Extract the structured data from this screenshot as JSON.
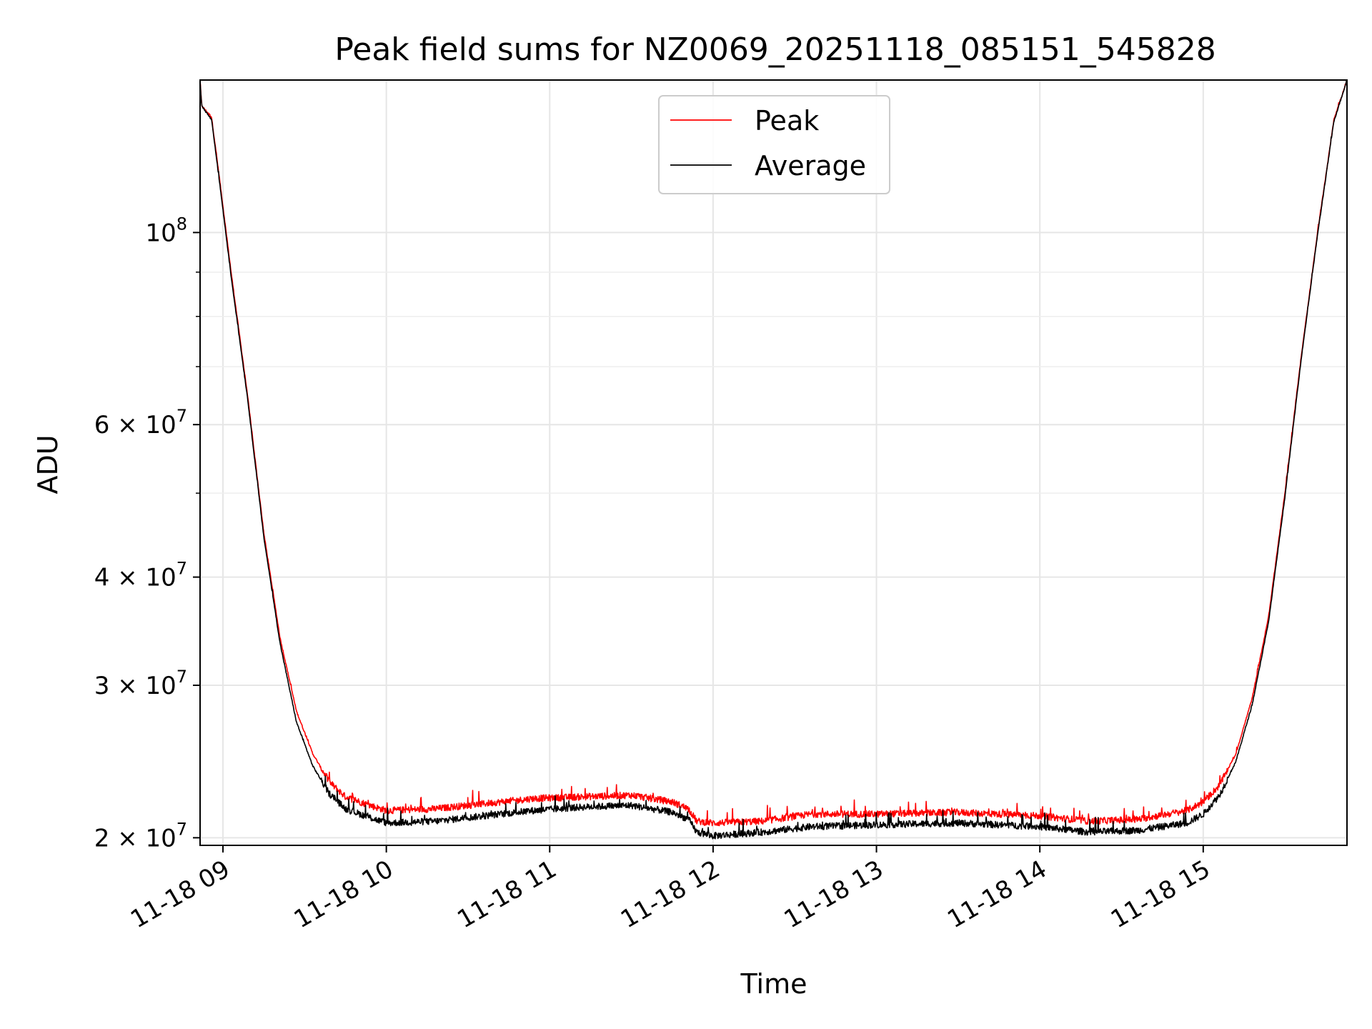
{
  "chart_data": {
    "type": "line",
    "title": "Peak field sums for NZ0069_20251118_085151_545828",
    "xlabel": "Time",
    "ylabel": "ADU",
    "yscale": "log",
    "ylim": [
      19600000,
      150000000
    ],
    "xlim": [
      8.86,
      15.88
    ],
    "grid": true,
    "legend_position": "top-center",
    "x_ticks": [
      {
        "value": 9,
        "label": "11-18 09"
      },
      {
        "value": 10,
        "label": "11-18 10"
      },
      {
        "value": 11,
        "label": "11-18 11"
      },
      {
        "value": 12,
        "label": "11-18 12"
      },
      {
        "value": 13,
        "label": "11-18 13"
      },
      {
        "value": 14,
        "label": "11-18 14"
      },
      {
        "value": 15,
        "label": "11-18 15"
      }
    ],
    "y_ticks": [
      {
        "value": 20000000,
        "base": "2 × 10",
        "exp": "7"
      },
      {
        "value": 30000000,
        "base": "3 × 10",
        "exp": "7"
      },
      {
        "value": 40000000,
        "base": "4 × 10",
        "exp": "7"
      },
      {
        "value": 60000000,
        "base": "6 × 10",
        "exp": "7"
      },
      {
        "value": 100000000,
        "base": "10",
        "exp": "8"
      }
    ],
    "y_minor_ticks": [
      50000000,
      70000000,
      80000000,
      90000000
    ],
    "x_unit_note": "x values are hours of day on 2025-11-18",
    "series": [
      {
        "name": "Peak",
        "color": "#ff0000",
        "noise": 0.018,
        "points": [
          [
            8.86,
            150000000
          ],
          [
            8.87,
            140000000
          ],
          [
            8.93,
            136000000
          ],
          [
            8.98,
            115000000
          ],
          [
            9.05,
            90000000
          ],
          [
            9.15,
            65000000
          ],
          [
            9.25,
            45000000
          ],
          [
            9.35,
            34000000
          ],
          [
            9.45,
            28000000
          ],
          [
            9.55,
            25000000
          ],
          [
            9.65,
            23200000
          ],
          [
            9.75,
            22300000
          ],
          [
            9.9,
            21800000
          ],
          [
            10.0,
            21500000
          ],
          [
            10.3,
            21600000
          ],
          [
            10.6,
            21900000
          ],
          [
            10.9,
            22200000
          ],
          [
            11.2,
            22300000
          ],
          [
            11.5,
            22400000
          ],
          [
            11.75,
            22000000
          ],
          [
            11.85,
            21600000
          ],
          [
            11.9,
            20900000
          ],
          [
            12.0,
            20800000
          ],
          [
            12.3,
            20900000
          ],
          [
            12.6,
            21300000
          ],
          [
            13.0,
            21300000
          ],
          [
            13.5,
            21400000
          ],
          [
            14.0,
            21200000
          ],
          [
            14.3,
            20900000
          ],
          [
            14.6,
            21000000
          ],
          [
            14.9,
            21500000
          ],
          [
            15.0,
            22000000
          ],
          [
            15.1,
            23000000
          ],
          [
            15.2,
            25000000
          ],
          [
            15.3,
            29000000
          ],
          [
            15.4,
            36000000
          ],
          [
            15.5,
            50000000
          ],
          [
            15.6,
            72000000
          ],
          [
            15.7,
            100000000
          ],
          [
            15.8,
            135000000
          ],
          [
            15.88,
            150000000
          ]
        ]
      },
      {
        "name": "Average",
        "color": "#000000",
        "noise": 0.018,
        "points": [
          [
            8.86,
            150000000
          ],
          [
            8.87,
            140000000
          ],
          [
            8.93,
            135000000
          ],
          [
            8.98,
            114000000
          ],
          [
            9.05,
            89000000
          ],
          [
            9.15,
            64500000
          ],
          [
            9.25,
            44500000
          ],
          [
            9.35,
            33500000
          ],
          [
            9.45,
            27200000
          ],
          [
            9.55,
            24200000
          ],
          [
            9.65,
            22500000
          ],
          [
            9.75,
            21600000
          ],
          [
            9.9,
            21100000
          ],
          [
            10.0,
            20800000
          ],
          [
            10.3,
            20900000
          ],
          [
            10.6,
            21200000
          ],
          [
            10.9,
            21500000
          ],
          [
            11.2,
            21700000
          ],
          [
            11.5,
            21800000
          ],
          [
            11.75,
            21400000
          ],
          [
            11.85,
            21000000
          ],
          [
            11.9,
            20300000
          ],
          [
            12.0,
            20100000
          ],
          [
            12.3,
            20300000
          ],
          [
            12.6,
            20600000
          ],
          [
            13.0,
            20700000
          ],
          [
            13.5,
            20800000
          ],
          [
            14.0,
            20600000
          ],
          [
            14.3,
            20300000
          ],
          [
            14.6,
            20400000
          ],
          [
            14.9,
            20800000
          ],
          [
            15.0,
            21300000
          ],
          [
            15.1,
            22400000
          ],
          [
            15.2,
            24500000
          ],
          [
            15.3,
            28500000
          ],
          [
            15.4,
            35500000
          ],
          [
            15.5,
            49500000
          ],
          [
            15.6,
            71500000
          ],
          [
            15.7,
            99500000
          ],
          [
            15.8,
            134500000
          ],
          [
            15.88,
            150000000
          ]
        ]
      }
    ]
  }
}
